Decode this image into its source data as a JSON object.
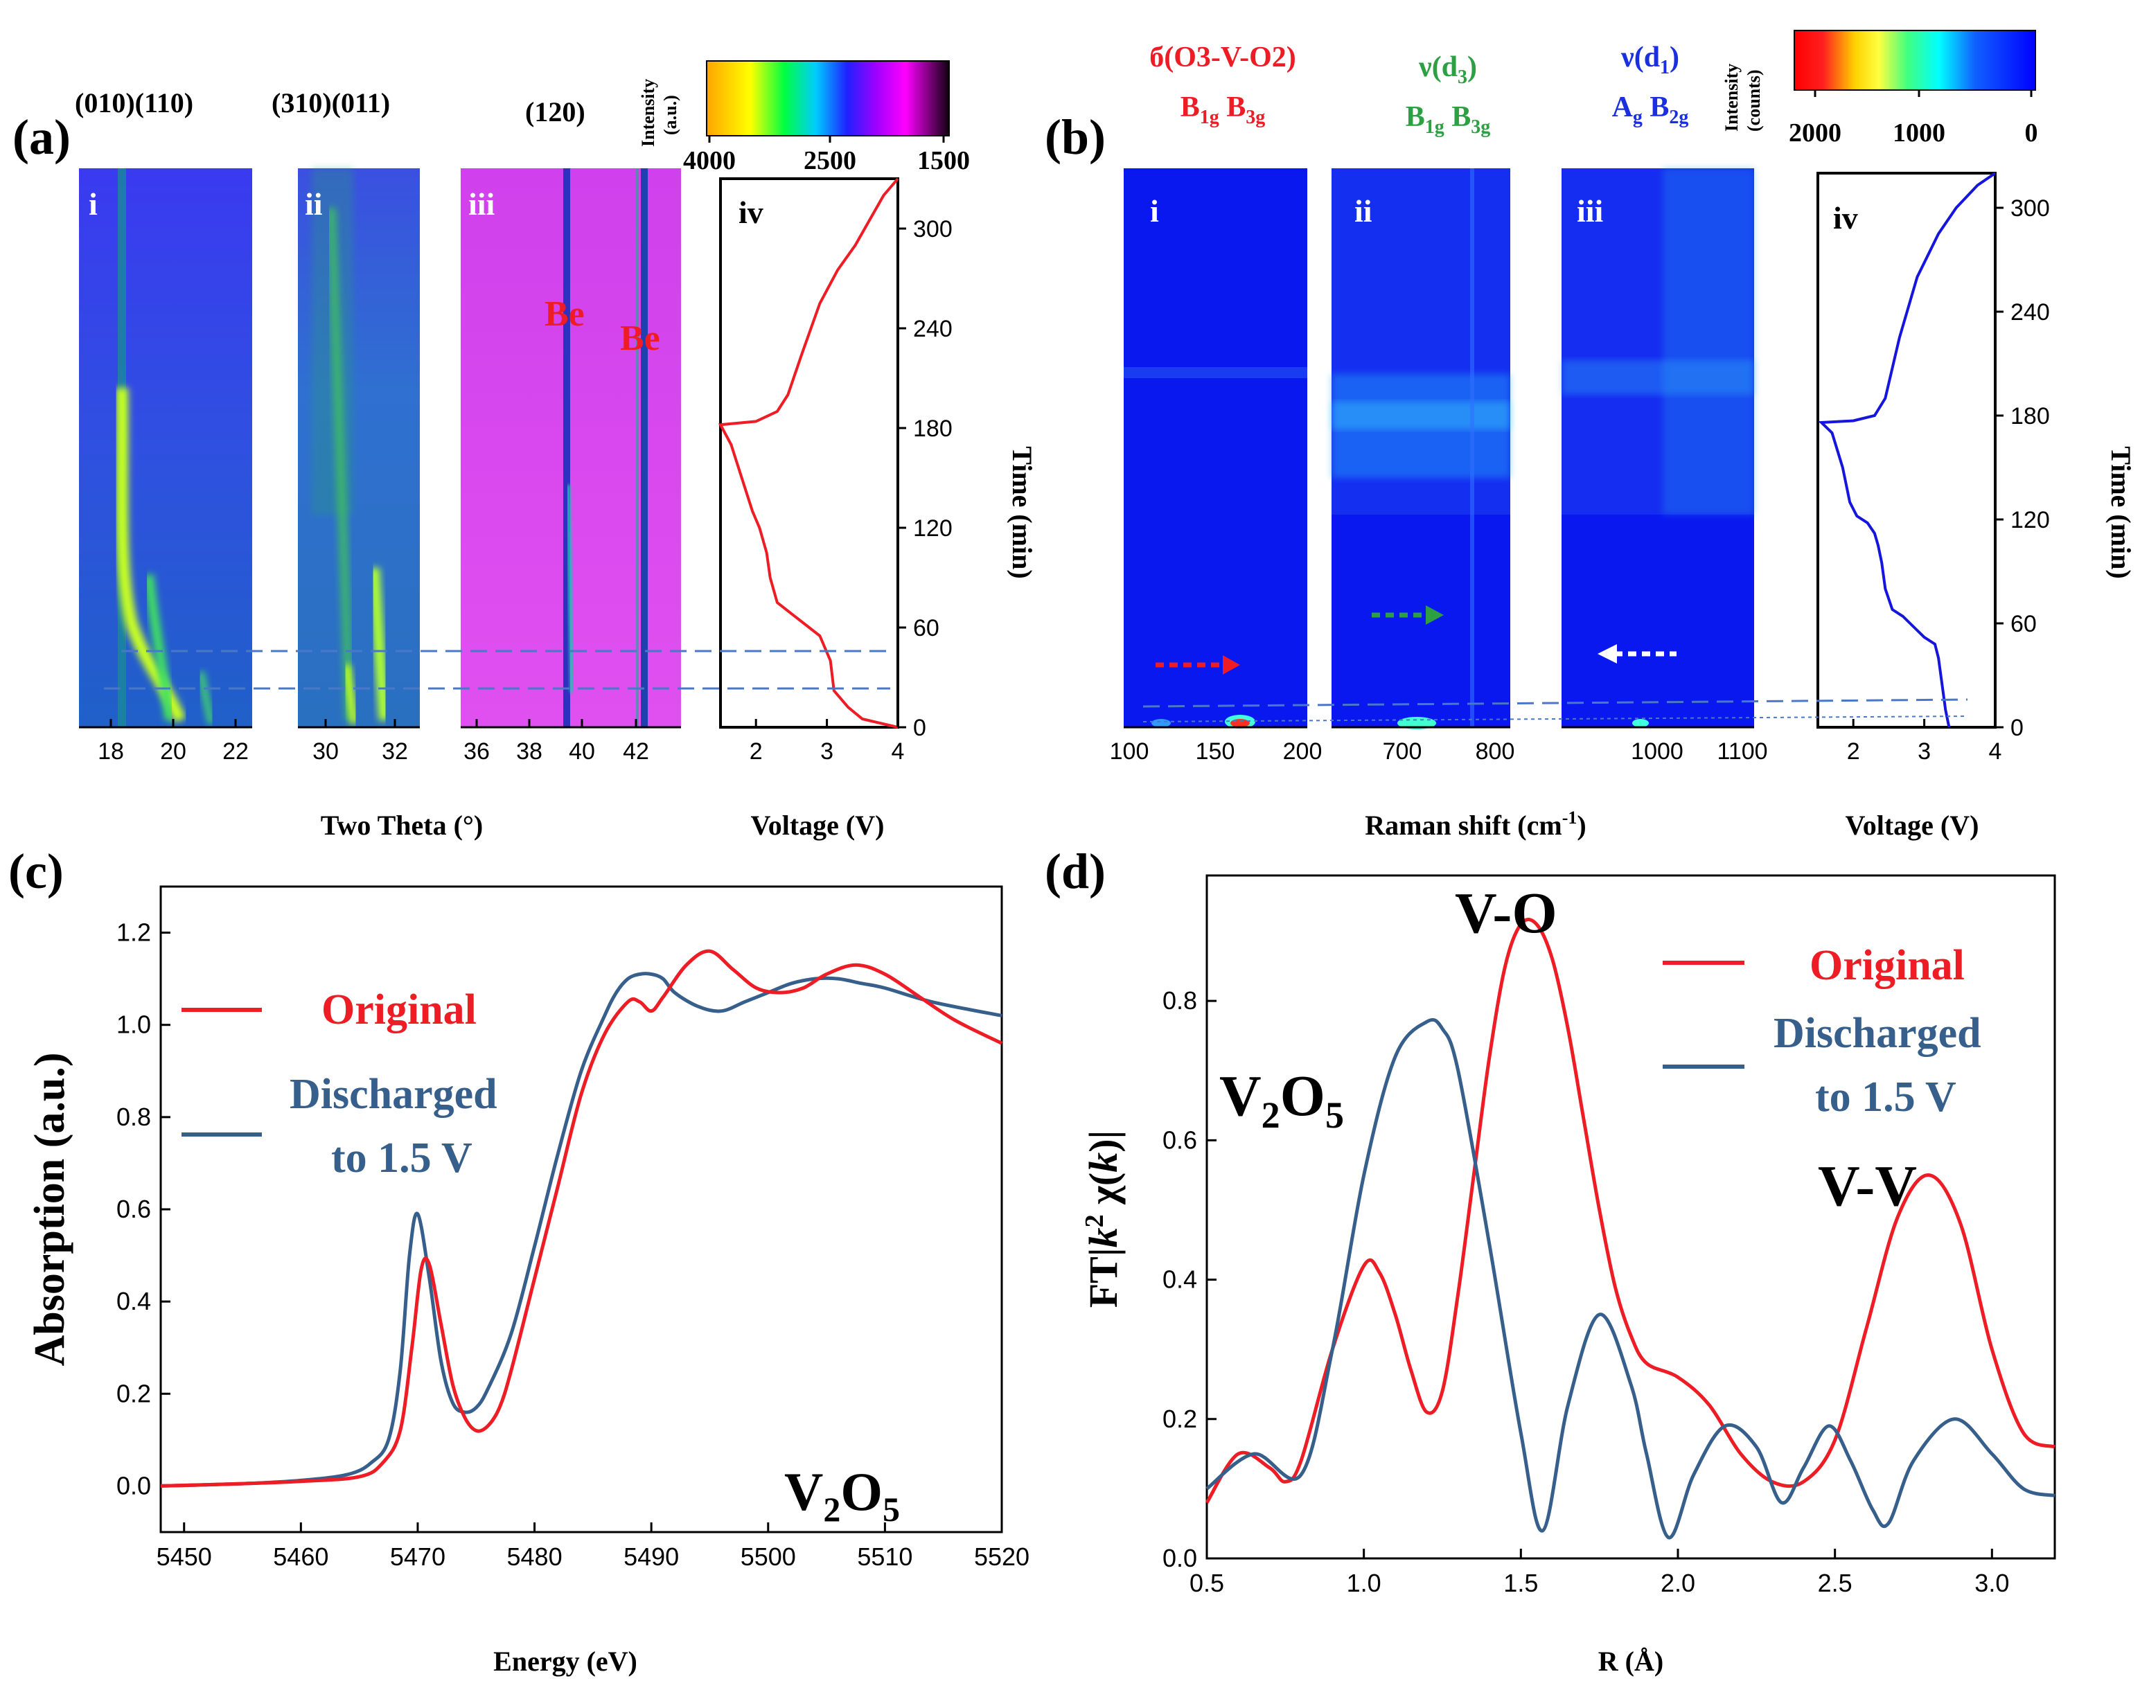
{
  "colors": {
    "red": "#ee1c24",
    "navy": "#365f8c",
    "green": "#2da043",
    "blue_label": "#1a2fe0",
    "blue_curve": "#1515dd",
    "dash": "#4a78c8"
  },
  "panel_a": {
    "letter": "(a)",
    "peaks_i": "(010)(110)",
    "peaks_ii": "(310)(011)",
    "peak_iii": "(120)",
    "sub_labels": [
      "i",
      "ii",
      "iii",
      "iv"
    ],
    "be_label": "Be",
    "colorbar_title": [
      "Intensity",
      "(a.u.)"
    ],
    "colorbar_ticks": [
      "4000",
      "2500",
      "1500"
    ],
    "xticks_i": [
      "18",
      "20",
      "22"
    ],
    "xticks_ii": [
      "30",
      "32"
    ],
    "xticks_iii": [
      "36",
      "38",
      "40",
      "42"
    ],
    "xlabel": "Two Theta (°)",
    "voltage_ticks": [
      "2",
      "3",
      "4"
    ],
    "voltage_label": "Voltage (V)",
    "time_ticks": [
      "0",
      "60",
      "120",
      "180",
      "240",
      "300"
    ],
    "time_label": "Time (min)"
  },
  "panel_b": {
    "letter": "(b)",
    "mode_i": {
      "name": "б(O3-V-O2)",
      "sym1": "B",
      "sub1": "1g",
      "sym2": "B",
      "sub2": "3g"
    },
    "mode_ii": {
      "name": "ν(d",
      "sub": "3",
      "close": ")",
      "sym1": "B",
      "sub1": "1g",
      "sym2": "B",
      "sub2": "3g"
    },
    "mode_iii": {
      "name": "ν(d",
      "sub": "1",
      "close": ")",
      "sym1": "A",
      "sub1": "g",
      "sym2": "B",
      "sub2": "2g"
    },
    "sub_labels": [
      "i",
      "ii",
      "iii",
      "iv"
    ],
    "colorbar_title": [
      "Intensity",
      "(counts)"
    ],
    "colorbar_ticks": [
      "2000",
      "1000",
      "0"
    ],
    "xticks_i": [
      "100",
      "150",
      "200"
    ],
    "xticks_ii": [
      "700",
      "800"
    ],
    "xticks_iii": [
      "1000",
      "1100"
    ],
    "xlabel_pre": "Raman shift (cm",
    "xlabel_sup": "-1",
    "xlabel_post": ")",
    "voltage_ticks": [
      "2",
      "3",
      "4"
    ],
    "voltage_label": "Voltage (V)",
    "time_ticks": [
      "0",
      "60",
      "120",
      "180",
      "240",
      "300"
    ],
    "time_label": "Time (min)"
  },
  "panel_c": {
    "letter": "(c)",
    "compound": {
      "a": "V",
      "s1": "2",
      "b": "O",
      "s2": "5"
    },
    "legend": [
      "Original",
      "Discharged",
      "to 1.5 V"
    ]
  },
  "panel_d": {
    "letter": "(d)",
    "ylabel": {
      "a": "FT|",
      "k": "k",
      "sup": "2",
      "chi": " χ(",
      "k2": "k",
      "close": ")|"
    },
    "compound": {
      "a": "V",
      "s1": "2",
      "b": "O",
      "s2": "5"
    },
    "annot_vo": "V-O",
    "annot_vv": "V-V",
    "legend": [
      "Original",
      "Discharged",
      "to 1.5 V"
    ]
  },
  "chart_data": [
    {
      "panel": "a-iv",
      "type": "line",
      "xlabel": "Voltage (V)",
      "ylabel": "Time (min)",
      "xlim": [
        1.5,
        4.0
      ],
      "ylim": [
        0,
        330
      ],
      "series": [
        {
          "name": "voltage profile",
          "color": "red",
          "x": [
            4.0,
            3.5,
            3.3,
            3.1,
            3.05,
            2.9,
            2.6,
            2.3,
            2.2,
            2.15,
            2.05,
            1.95,
            1.8,
            1.65,
            1.5,
            2.0,
            2.3,
            2.45,
            2.65,
            2.9,
            3.15,
            3.4,
            3.6,
            3.8,
            4.0
          ],
          "y": [
            0,
            5,
            12,
            22,
            40,
            55,
            65,
            75,
            90,
            105,
            120,
            130,
            150,
            170,
            182,
            184,
            190,
            200,
            225,
            255,
            275,
            290,
            305,
            320,
            330
          ]
        }
      ]
    },
    {
      "panel": "b-iv",
      "type": "line",
      "xlabel": "Voltage (V)",
      "ylabel": "Time (min)",
      "xlim": [
        1.5,
        4.0
      ],
      "ylim": [
        0,
        320
      ],
      "series": [
        {
          "name": "voltage profile",
          "color": "blue",
          "x": [
            3.35,
            3.3,
            3.25,
            3.2,
            3.15,
            3.0,
            2.85,
            2.7,
            2.55,
            2.45,
            2.4,
            2.35,
            2.3,
            2.2,
            2.05,
            1.95,
            1.85,
            1.7,
            1.55,
            2.0,
            2.3,
            2.45,
            2.65,
            2.9,
            3.2,
            3.45,
            3.75,
            4.0
          ],
          "y": [
            0,
            10,
            25,
            40,
            48,
            52,
            58,
            64,
            68,
            80,
            95,
            105,
            112,
            118,
            122,
            130,
            150,
            170,
            176,
            177,
            180,
            190,
            225,
            260,
            285,
            300,
            313,
            320
          ]
        }
      ]
    },
    {
      "panel": "c",
      "type": "line",
      "xlabel": "Energy (eV)",
      "ylabel": "Absorption (a.u.)",
      "xlim": [
        5448,
        5520
      ],
      "ylim": [
        -0.1,
        1.3
      ],
      "xticks": [
        5450,
        5460,
        5470,
        5480,
        5490,
        5500,
        5510,
        5520
      ],
      "yticks": [
        0.0,
        0.2,
        0.4,
        0.6,
        0.8,
        1.0,
        1.2
      ],
      "series": [
        {
          "name": "Original",
          "x": [
            5448,
            5455,
            5460,
            5465,
            5467,
            5468.5,
            5469.5,
            5470.3,
            5471,
            5472,
            5473,
            5474,
            5475,
            5476,
            5477,
            5478,
            5480,
            5482,
            5484,
            5486,
            5488,
            5489,
            5490,
            5491,
            5493,
            5495,
            5497,
            5499,
            5501,
            5503,
            5505,
            5507.5,
            5510,
            5513,
            5516,
            5520
          ],
          "y": [
            0.0,
            0.005,
            0.01,
            0.02,
            0.05,
            0.12,
            0.3,
            0.47,
            0.48,
            0.35,
            0.22,
            0.15,
            0.12,
            0.13,
            0.17,
            0.25,
            0.45,
            0.65,
            0.85,
            0.98,
            1.05,
            1.05,
            1.03,
            1.06,
            1.13,
            1.16,
            1.12,
            1.08,
            1.07,
            1.08,
            1.11,
            1.13,
            1.11,
            1.06,
            1.01,
            0.96
          ]
        },
        {
          "name": "Discharged to 1.5 V",
          "x": [
            5448,
            5455,
            5460,
            5464,
            5466,
            5467.5,
            5468.5,
            5469.3,
            5470,
            5471,
            5472,
            5473,
            5474,
            5475,
            5476,
            5478,
            5480,
            5482,
            5484,
            5486,
            5487,
            5488,
            5489,
            5490,
            5491,
            5492,
            5494,
            5496,
            5498,
            5500,
            5502,
            5504,
            5506,
            5508,
            5510,
            5514,
            5520
          ],
          "y": [
            0.0,
            0.005,
            0.012,
            0.025,
            0.05,
            0.1,
            0.25,
            0.5,
            0.59,
            0.45,
            0.27,
            0.18,
            0.16,
            0.17,
            0.21,
            0.33,
            0.52,
            0.72,
            0.9,
            1.02,
            1.07,
            1.1,
            1.11,
            1.11,
            1.1,
            1.07,
            1.04,
            1.03,
            1.05,
            1.07,
            1.09,
            1.1,
            1.1,
            1.09,
            1.08,
            1.05,
            1.02
          ]
        }
      ]
    },
    {
      "panel": "d",
      "type": "line",
      "xlabel": "R (Å)",
      "ylabel": "FT|k² χ(k)|",
      "xlim": [
        0.5,
        3.2
      ],
      "ylim": [
        0.0,
        0.98
      ],
      "xticks": [
        0.5,
        1.0,
        1.5,
        2.0,
        2.5,
        3.0
      ],
      "yticks": [
        0.0,
        0.2,
        0.4,
        0.6,
        0.8
      ],
      "series": [
        {
          "name": "Original",
          "x": [
            0.5,
            0.6,
            0.7,
            0.75,
            0.8,
            0.9,
            1.0,
            1.05,
            1.1,
            1.15,
            1.2,
            1.25,
            1.3,
            1.35,
            1.4,
            1.45,
            1.5,
            1.55,
            1.6,
            1.65,
            1.7,
            1.75,
            1.8,
            1.85,
            1.9,
            2.0,
            2.1,
            2.2,
            2.3,
            2.4,
            2.5,
            2.6,
            2.7,
            2.8,
            2.9,
            3.0,
            3.1,
            3.2
          ],
          "y": [
            0.08,
            0.15,
            0.13,
            0.11,
            0.14,
            0.3,
            0.42,
            0.41,
            0.35,
            0.27,
            0.21,
            0.24,
            0.38,
            0.55,
            0.72,
            0.85,
            0.91,
            0.91,
            0.86,
            0.76,
            0.63,
            0.5,
            0.39,
            0.32,
            0.28,
            0.26,
            0.22,
            0.15,
            0.11,
            0.11,
            0.17,
            0.33,
            0.49,
            0.55,
            0.48,
            0.3,
            0.18,
            0.16
          ]
        },
        {
          "name": "Discharged to 1.5 V",
          "x": [
            0.5,
            0.65,
            0.8,
            0.9,
            1.0,
            1.1,
            1.2,
            1.25,
            1.3,
            1.4,
            1.5,
            1.57,
            1.65,
            1.75,
            1.85,
            1.9,
            1.97,
            2.05,
            2.15,
            2.25,
            2.33,
            2.4,
            2.48,
            2.55,
            2.62,
            2.67,
            2.75,
            2.88,
            3.0,
            3.1,
            3.2
          ],
          "y": [
            0.1,
            0.15,
            0.12,
            0.3,
            0.55,
            0.72,
            0.77,
            0.76,
            0.7,
            0.45,
            0.18,
            0.04,
            0.22,
            0.35,
            0.25,
            0.15,
            0.03,
            0.12,
            0.19,
            0.16,
            0.08,
            0.13,
            0.19,
            0.14,
            0.07,
            0.05,
            0.14,
            0.2,
            0.15,
            0.1,
            0.09
          ]
        }
      ]
    }
  ]
}
